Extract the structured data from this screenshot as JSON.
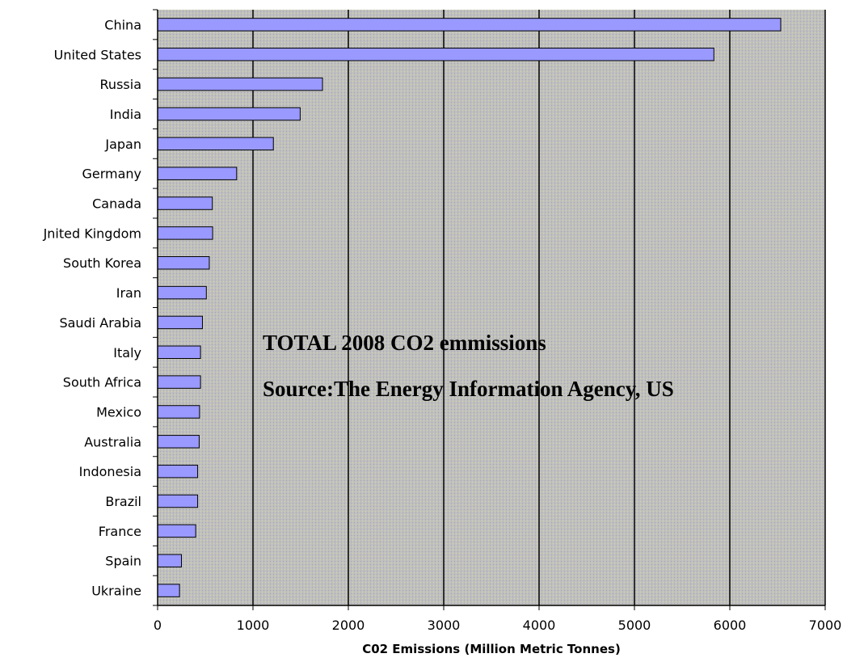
{
  "chart_data": {
    "type": "bar",
    "orientation": "horizontal",
    "categories": [
      "China",
      "United States",
      "Russia",
      "India",
      "Japan",
      "Germany",
      "Canada",
      "Jnited Kingdom",
      "South Korea",
      "Iran",
      "Saudi Arabia",
      "Italy",
      "South Africa",
      "Mexico",
      "Australia",
      "Indonesia",
      "Brazil",
      "France",
      "Spain",
      "Ukraine"
    ],
    "values": [
      6534,
      5833,
      1729,
      1495,
      1214,
      829,
      574,
      577,
      542,
      511,
      470,
      450,
      450,
      440,
      436,
      420,
      420,
      400,
      250,
      230
    ],
    "xlabel": "C02 Emissions (Million Metric Tonnes)",
    "ylabel": "",
    "xlim": [
      0,
      7000
    ],
    "xticks": [
      "0",
      "1000",
      "2000",
      "3000",
      "4000",
      "5000",
      "6000",
      "7000"
    ],
    "grid": "vertical",
    "annotations": [
      "TOTAL 2008 CO2 emmissions",
      "Source:The Energy Information Agency, US"
    ],
    "colors": {
      "bar_fill": "#9999ff",
      "bar_stroke": "#000000",
      "plot_background": "#c0c0c0",
      "gridline": "#000000"
    }
  }
}
